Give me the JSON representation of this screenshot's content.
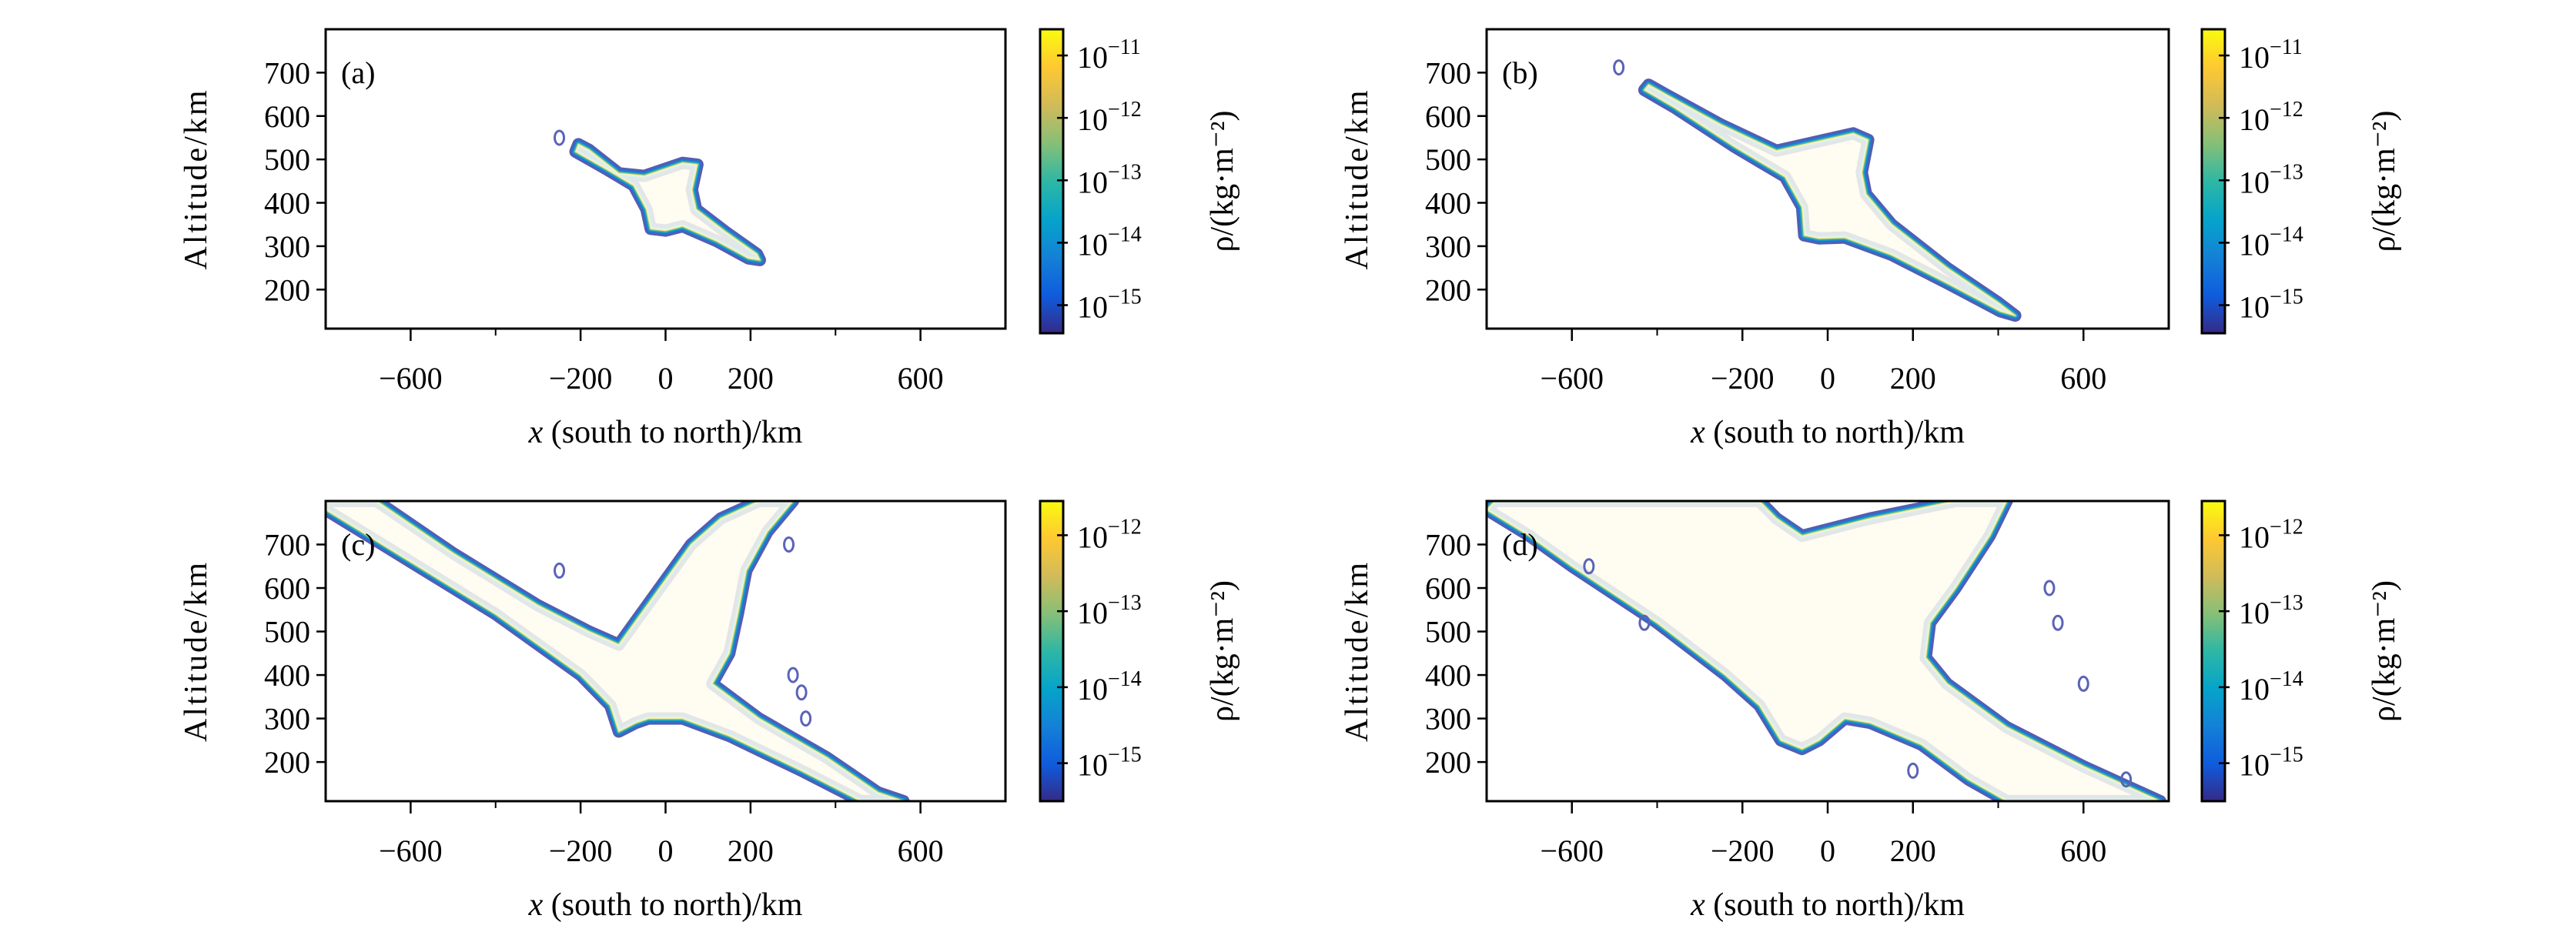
{
  "chart_data": [
    {
      "type": "heatmap",
      "panel_label": "(a)",
      "xlabel": {
        "symbol": "x",
        "rest": " (south to north)/km"
      },
      "ylabel": "Altitude/km",
      "xlim": [
        -800,
        800
      ],
      "ylim": [
        110,
        800
      ],
      "xticks": [
        -600,
        -200,
        0,
        200,
        600
      ],
      "xtick_labels": [
        "−600",
        "−200",
        "0",
        "200",
        "600"
      ],
      "xminor_ticks": [
        -400,
        400
      ],
      "yticks": [
        200,
        300,
        400,
        500,
        600,
        700
      ],
      "ytick_labels": [
        "200",
        "300",
        "400",
        "500",
        "600",
        "700"
      ],
      "colorbar": {
        "label": "ρ/(kg·m⁻²)",
        "scale": "log",
        "range_log10": [
          -15.45,
          -10.58
        ],
        "ticks": [
          {
            "base": "10",
            "exp": "−15",
            "log": -15
          },
          {
            "base": "10",
            "exp": "−14",
            "log": -14
          },
          {
            "base": "10",
            "exp": "−13",
            "log": -13
          },
          {
            "base": "10",
            "exp": "−12",
            "log": -12
          },
          {
            "base": "10",
            "exp": "−11",
            "log": -11
          }
        ]
      }
    },
    {
      "type": "heatmap",
      "panel_label": "(b)",
      "xlabel": {
        "symbol": "x",
        "rest": " (south to north)/km"
      },
      "ylabel": "Altitude/km",
      "xlim": [
        -800,
        800
      ],
      "ylim": [
        110,
        800
      ],
      "xticks": [
        -600,
        -200,
        0,
        200,
        600
      ],
      "xtick_labels": [
        "−600",
        "−200",
        "0",
        "200",
        "600"
      ],
      "xminor_ticks": [
        -400,
        400
      ],
      "yticks": [
        200,
        300,
        400,
        500,
        600,
        700
      ],
      "ytick_labels": [
        "200",
        "300",
        "400",
        "500",
        "600",
        "700"
      ],
      "colorbar": {
        "label": "ρ/(kg·m⁻²)",
        "scale": "log",
        "range_log10": [
          -15.45,
          -10.58
        ],
        "ticks": [
          {
            "base": "10",
            "exp": "−15",
            "log": -15
          },
          {
            "base": "10",
            "exp": "−14",
            "log": -14
          },
          {
            "base": "10",
            "exp": "−13",
            "log": -13
          },
          {
            "base": "10",
            "exp": "−12",
            "log": -12
          },
          {
            "base": "10",
            "exp": "−11",
            "log": -11
          }
        ]
      }
    },
    {
      "type": "heatmap",
      "panel_label": "(c)",
      "xlabel": {
        "symbol": "x",
        "rest": " (south to north)/km"
      },
      "ylabel": "Altitude/km",
      "xlim": [
        -800,
        800
      ],
      "ylim": [
        110,
        800
      ],
      "xticks": [
        -600,
        -200,
        0,
        200,
        600
      ],
      "xtick_labels": [
        "−600",
        "−200",
        "0",
        "200",
        "600"
      ],
      "xminor_ticks": [
        -400,
        400
      ],
      "yticks": [
        200,
        300,
        400,
        500,
        600,
        700
      ],
      "ytick_labels": [
        "200",
        "300",
        "400",
        "500",
        "600",
        "700"
      ],
      "colorbar": {
        "label": "ρ/(kg·m⁻²)",
        "scale": "log",
        "range_log10": [
          -15.5,
          -11.55
        ],
        "ticks": [
          {
            "base": "10",
            "exp": "−15",
            "log": -15
          },
          {
            "base": "10",
            "exp": "−14",
            "log": -14
          },
          {
            "base": "10",
            "exp": "−13",
            "log": -13
          },
          {
            "base": "10",
            "exp": "−12",
            "log": -12
          }
        ]
      }
    },
    {
      "type": "heatmap",
      "panel_label": "(d)",
      "xlabel": {
        "symbol": "x",
        "rest": " (south to north)/km"
      },
      "ylabel": "Altitude/km",
      "xlim": [
        -800,
        800
      ],
      "ylim": [
        110,
        800
      ],
      "xticks": [
        -600,
        -200,
        0,
        200,
        600
      ],
      "xtick_labels": [
        "−600",
        "−200",
        "0",
        "200",
        "600"
      ],
      "xminor_ticks": [
        -400,
        400
      ],
      "yticks": [
        200,
        300,
        400,
        500,
        600,
        700
      ],
      "ytick_labels": [
        "200",
        "300",
        "400",
        "500",
        "600",
        "700"
      ],
      "colorbar": {
        "label": "ρ/(kg·m⁻²)",
        "scale": "log",
        "range_log10": [
          -15.5,
          -11.55
        ],
        "ticks": [
          {
            "base": "10",
            "exp": "−15",
            "log": -15
          },
          {
            "base": "10",
            "exp": "−14",
            "log": -14
          },
          {
            "base": "10",
            "exp": "−13",
            "log": -13
          },
          {
            "base": "10",
            "exp": "−12",
            "log": -12
          }
        ]
      }
    }
  ],
  "colormap": [
    "#352a87",
    "#0f5cdd",
    "#1481d6",
    "#06a4ca",
    "#2eb7a4",
    "#87bf77",
    "#d1bb59",
    "#fec832",
    "#f9fb0e"
  ]
}
